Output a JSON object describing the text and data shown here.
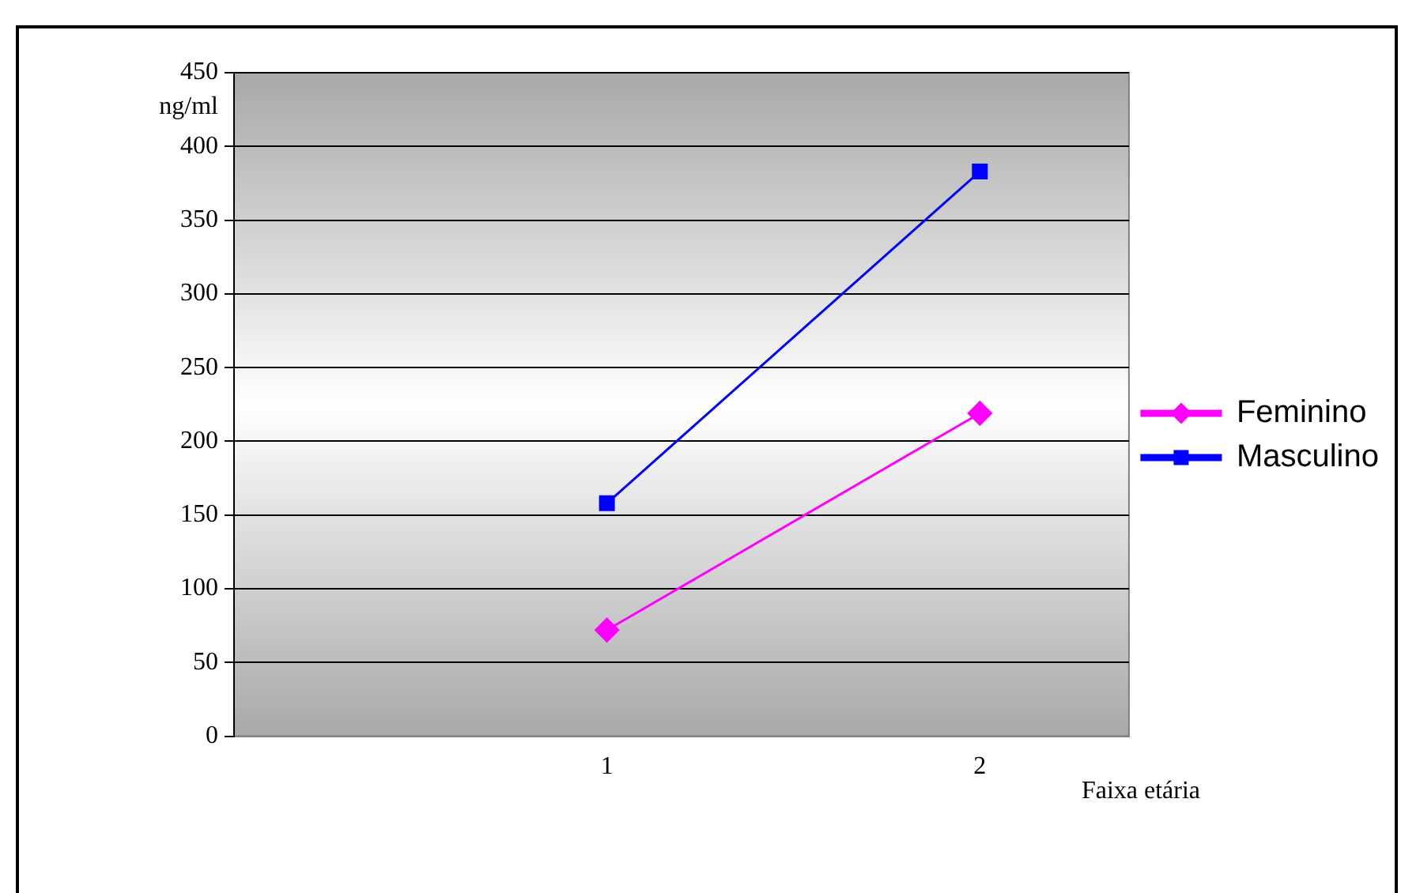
{
  "chart_data": {
    "type": "line",
    "xlabel": "Faixa etária",
    "ylabel": "ng/ml",
    "x": [
      1,
      2
    ],
    "xlim": [
      0,
      2.4
    ],
    "xticks": [
      1,
      2
    ],
    "ylim": [
      0,
      450
    ],
    "yticks": [
      0,
      50,
      100,
      150,
      200,
      250,
      300,
      350,
      400,
      450
    ],
    "grid": "y",
    "legend": "right",
    "series": [
      {
        "name": "Feminino",
        "color": "#ff00ff",
        "marker": "diamond",
        "values": [
          72,
          219
        ]
      },
      {
        "name": "Masculino",
        "color": "#0000ff",
        "marker": "square",
        "values": [
          158,
          383
        ]
      }
    ]
  }
}
